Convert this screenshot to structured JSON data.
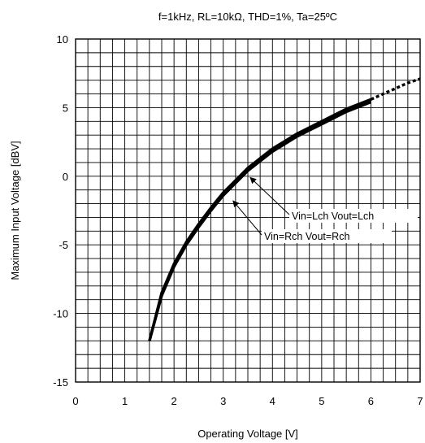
{
  "chart_data": {
    "type": "line",
    "title": "f=1kHz, RL=10kΩ, THD=1%, Ta=25ºC",
    "xlabel": "Operating Voltage [V]",
    "ylabel": "Maximum Input Voltage [dBV]",
    "xlim": [
      0,
      7
    ],
    "ylim": [
      -15,
      10
    ],
    "xticks": [
      0,
      1,
      2,
      3,
      4,
      5,
      6,
      7
    ],
    "yticks": [
      -15,
      -10,
      -5,
      0,
      5,
      10
    ],
    "grid": true,
    "x_minor_step": 0.25,
    "y_minor_step": 1,
    "series": [
      {
        "name": "Vin=Lch Vout=Lch",
        "x": [
          1.5,
          1.75,
          2.0,
          2.25,
          2.5,
          2.75,
          3.0,
          3.25,
          3.5,
          3.75,
          4.0,
          4.5,
          5.0,
          5.5,
          6.0
        ],
        "y": [
          -12.0,
          -8.5,
          -6.4,
          -4.8,
          -3.5,
          -2.3,
          -1.2,
          -0.3,
          0.6,
          1.3,
          2.0,
          3.1,
          4.0,
          4.9,
          5.6
        ]
      },
      {
        "name": "Vin=Rch Vout=Rch",
        "x": [
          1.5,
          1.75,
          2.0,
          2.25,
          2.5,
          2.75,
          3.0,
          3.25,
          3.5,
          3.75,
          4.0,
          4.5,
          5.0,
          5.5,
          6.0
        ],
        "y": [
          -12.0,
          -8.7,
          -6.6,
          -5.0,
          -3.7,
          -2.5,
          -1.4,
          -0.5,
          0.4,
          1.1,
          1.8,
          2.9,
          3.8,
          4.7,
          5.4
        ]
      },
      {
        "name": "",
        "style": "dashed",
        "x": [
          6.0,
          6.25,
          6.5,
          6.75,
          7.0
        ],
        "y": [
          5.6,
          6.0,
          6.4,
          6.8,
          7.1
        ]
      }
    ],
    "annotations": [
      {
        "text": "Vin=Lch Vout=Lch",
        "points_to": [
          3.55,
          -0.1
        ]
      },
      {
        "text": "Vin=Rch Vout=Rch",
        "points_to": [
          3.2,
          -1.8
        ]
      }
    ]
  }
}
